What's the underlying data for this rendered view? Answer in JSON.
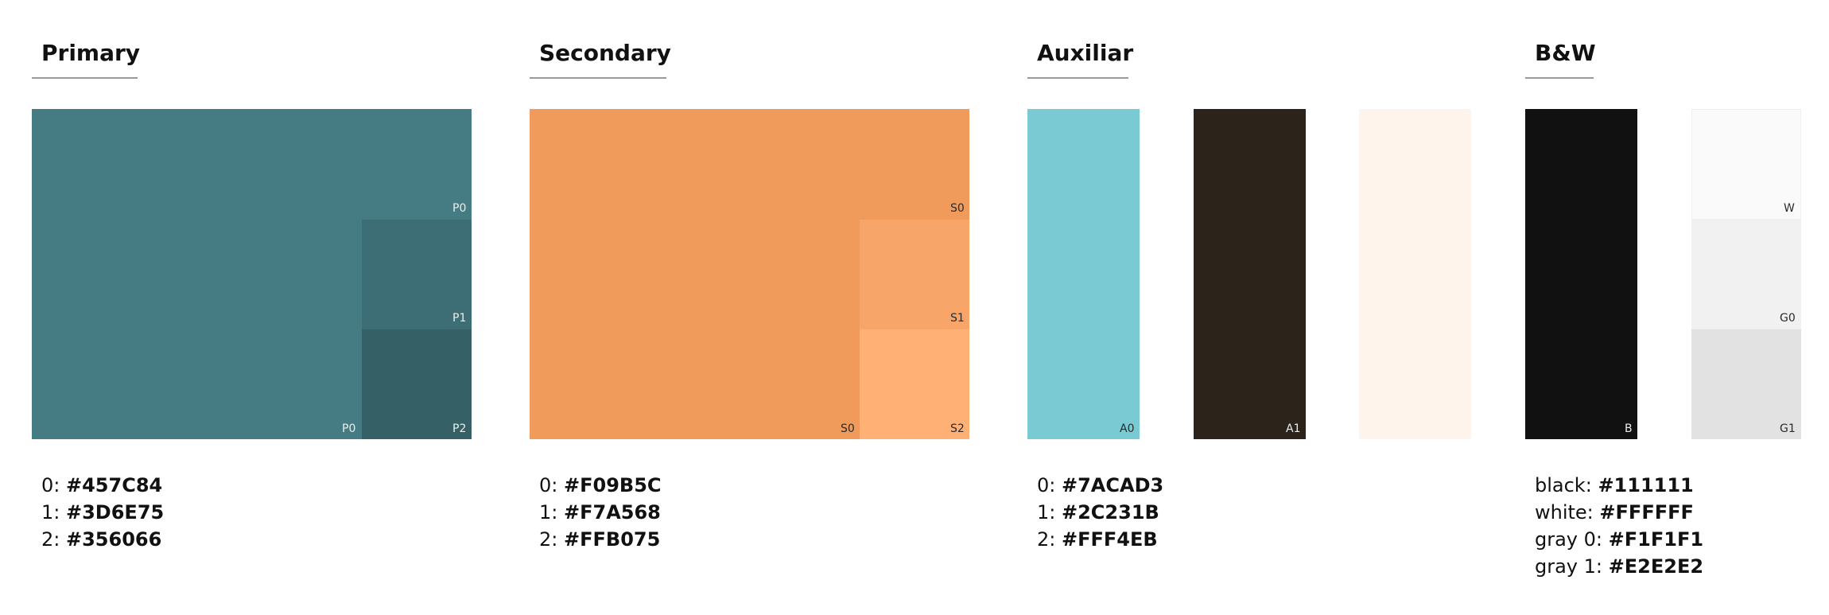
{
  "sections": {
    "primary": {
      "title": "Primary",
      "tags": {
        "p0_top": "P0",
        "p1": "P1",
        "p0_bottom": "P0",
        "p2": "P2"
      },
      "colors": {
        "c0": "#457C84",
        "c1": "#3D6E75",
        "c2": "#356066"
      },
      "codes": [
        {
          "key": "0:",
          "value": "#457C84"
        },
        {
          "key": "1:",
          "value": "#3D6E75"
        },
        {
          "key": "2:",
          "value": "#356066"
        }
      ]
    },
    "secondary": {
      "title": "Secondary",
      "tags": {
        "s0_top": "S0",
        "s1": "S1",
        "s0_bottom": "S0",
        "s2": "S2"
      },
      "colors": {
        "c0": "#F09B5C",
        "c1": "#F7A568",
        "c2": "#FFB075"
      },
      "codes": [
        {
          "key": "0:",
          "value": "#F09B5C"
        },
        {
          "key": "1:",
          "value": "#F7A568"
        },
        {
          "key": "2:",
          "value": "#FFB075"
        }
      ]
    },
    "auxiliar": {
      "title": "Auxiliar",
      "tags": {
        "a0": "A0",
        "a1": "A1"
      },
      "colors": {
        "c0": "#7ACAD3",
        "c1": "#2C231B",
        "c2": "#FFF4EB"
      },
      "codes": [
        {
          "key": "0:",
          "value": "#7ACAD3"
        },
        {
          "key": "1:",
          "value": "#2C231B"
        },
        {
          "key": "2:",
          "value": "#FFF4EB"
        }
      ]
    },
    "bw": {
      "title": "B&W",
      "tags": {
        "b": "B",
        "w": "W",
        "g0": "G0",
        "g1": "G1"
      },
      "colors": {
        "black": "#111111",
        "white": "#FFFFFF",
        "gray0": "#F1F1F1",
        "gray1": "#E2E2E2"
      },
      "codes": [
        {
          "key": "black:",
          "value": "#111111"
        },
        {
          "key": "white:",
          "value": "#FFFFFF"
        },
        {
          "key": "gray 0:",
          "value": "#F1F1F1"
        },
        {
          "key": "gray 1:",
          "value": "#E2E2E2"
        }
      ]
    }
  }
}
